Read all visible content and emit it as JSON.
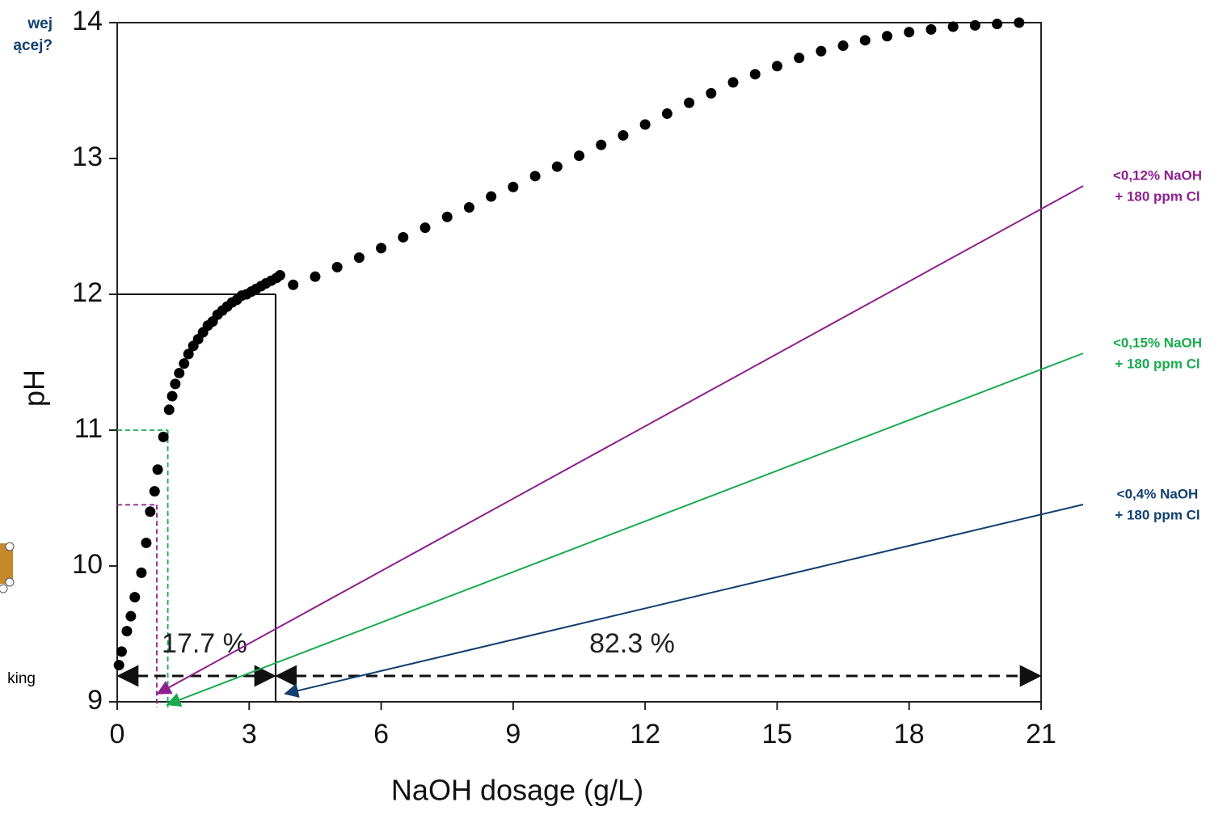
{
  "chart_data": {
    "type": "scatter",
    "x_label": "NaOH dosage (g/L)",
    "y_label": "pH",
    "xlim": [
      0,
      21
    ],
    "xticks": [
      0,
      3,
      6,
      9,
      12,
      15,
      18,
      21
    ],
    "ylim": [
      9,
      14
    ],
    "yticks": [
      9,
      10,
      11,
      12,
      13,
      14
    ],
    "color": "#000000",
    "x": [
      0.04,
      0.1,
      0.22,
      0.31,
      0.4,
      0.55,
      0.66,
      0.75,
      0.85,
      0.92,
      1.05,
      1.18,
      1.25,
      1.32,
      1.41,
      1.52,
      1.62,
      1.73,
      1.84,
      1.95,
      2.06,
      2.17,
      2.28,
      2.39,
      2.5,
      2.61,
      2.72,
      2.83,
      2.94,
      3.05,
      3.16,
      3.27,
      3.38,
      3.5,
      3.62,
      3.7,
      4.0,
      4.5,
      5.0,
      5.5,
      6.0,
      6.5,
      7.0,
      7.5,
      8.0,
      8.5,
      9.0,
      9.5,
      10.0,
      10.5,
      11.0,
      11.5,
      12.0,
      12.5,
      13.0,
      13.5,
      14.0,
      14.5,
      15.0,
      15.5,
      16.0,
      16.5,
      17.0,
      17.5,
      18.0,
      18.5,
      19.0,
      19.5,
      20.0,
      20.5
    ],
    "y": [
      9.27,
      9.37,
      9.52,
      9.63,
      9.77,
      9.95,
      10.17,
      10.4,
      10.55,
      10.71,
      10.95,
      11.15,
      11.25,
      11.34,
      11.42,
      11.49,
      11.56,
      11.62,
      11.67,
      11.72,
      11.77,
      11.8,
      11.85,
      11.88,
      11.91,
      11.94,
      11.96,
      11.99,
      12.0,
      12.02,
      12.04,
      12.06,
      12.08,
      12.1,
      12.12,
      12.14,
      12.07,
      12.13,
      12.2,
      12.27,
      12.34,
      12.42,
      12.49,
      12.57,
      12.64,
      12.72,
      12.79,
      12.87,
      12.94,
      13.02,
      13.1,
      13.17,
      13.25,
      13.33,
      13.41,
      13.48,
      13.56,
      13.62,
      13.68,
      13.74,
      13.79,
      13.83,
      13.87,
      13.9,
      13.93,
      13.95,
      13.97,
      13.98,
      13.99,
      14.0
    ],
    "reference_lines": [
      {
        "x": 3.6,
        "y": 12,
        "color": "#000000",
        "dashed": false
      },
      {
        "x": 1.15,
        "y": 11,
        "color": "#1aaa4f",
        "dashed": true
      },
      {
        "x": 0.9,
        "y": 10.45,
        "color": "#8e1f8e",
        "dashed": true
      }
    ],
    "span_labels": [
      "17.7 %",
      "82.3 %"
    ],
    "annotations": [
      {
        "lines": [
          "<0,12% NaOH",
          "+ 180 ppm  Cl"
        ],
        "color": "#8e1f8e",
        "target": [
          0.92,
          9.06
        ]
      },
      {
        "lines": [
          "<0,15% NaOH",
          "+ 180 ppm  Cl"
        ],
        "color": "#1aaa4f",
        "target": [
          1.14,
          8.98
        ]
      },
      {
        "lines": [
          "<0,4% NaOH",
          "+ 180 ppm  Cl"
        ],
        "color": "#123f6e",
        "target": [
          3.82,
          9.06
        ]
      }
    ]
  },
  "cropped_text": [
    "wej",
    "ącej?",
    "king"
  ]
}
